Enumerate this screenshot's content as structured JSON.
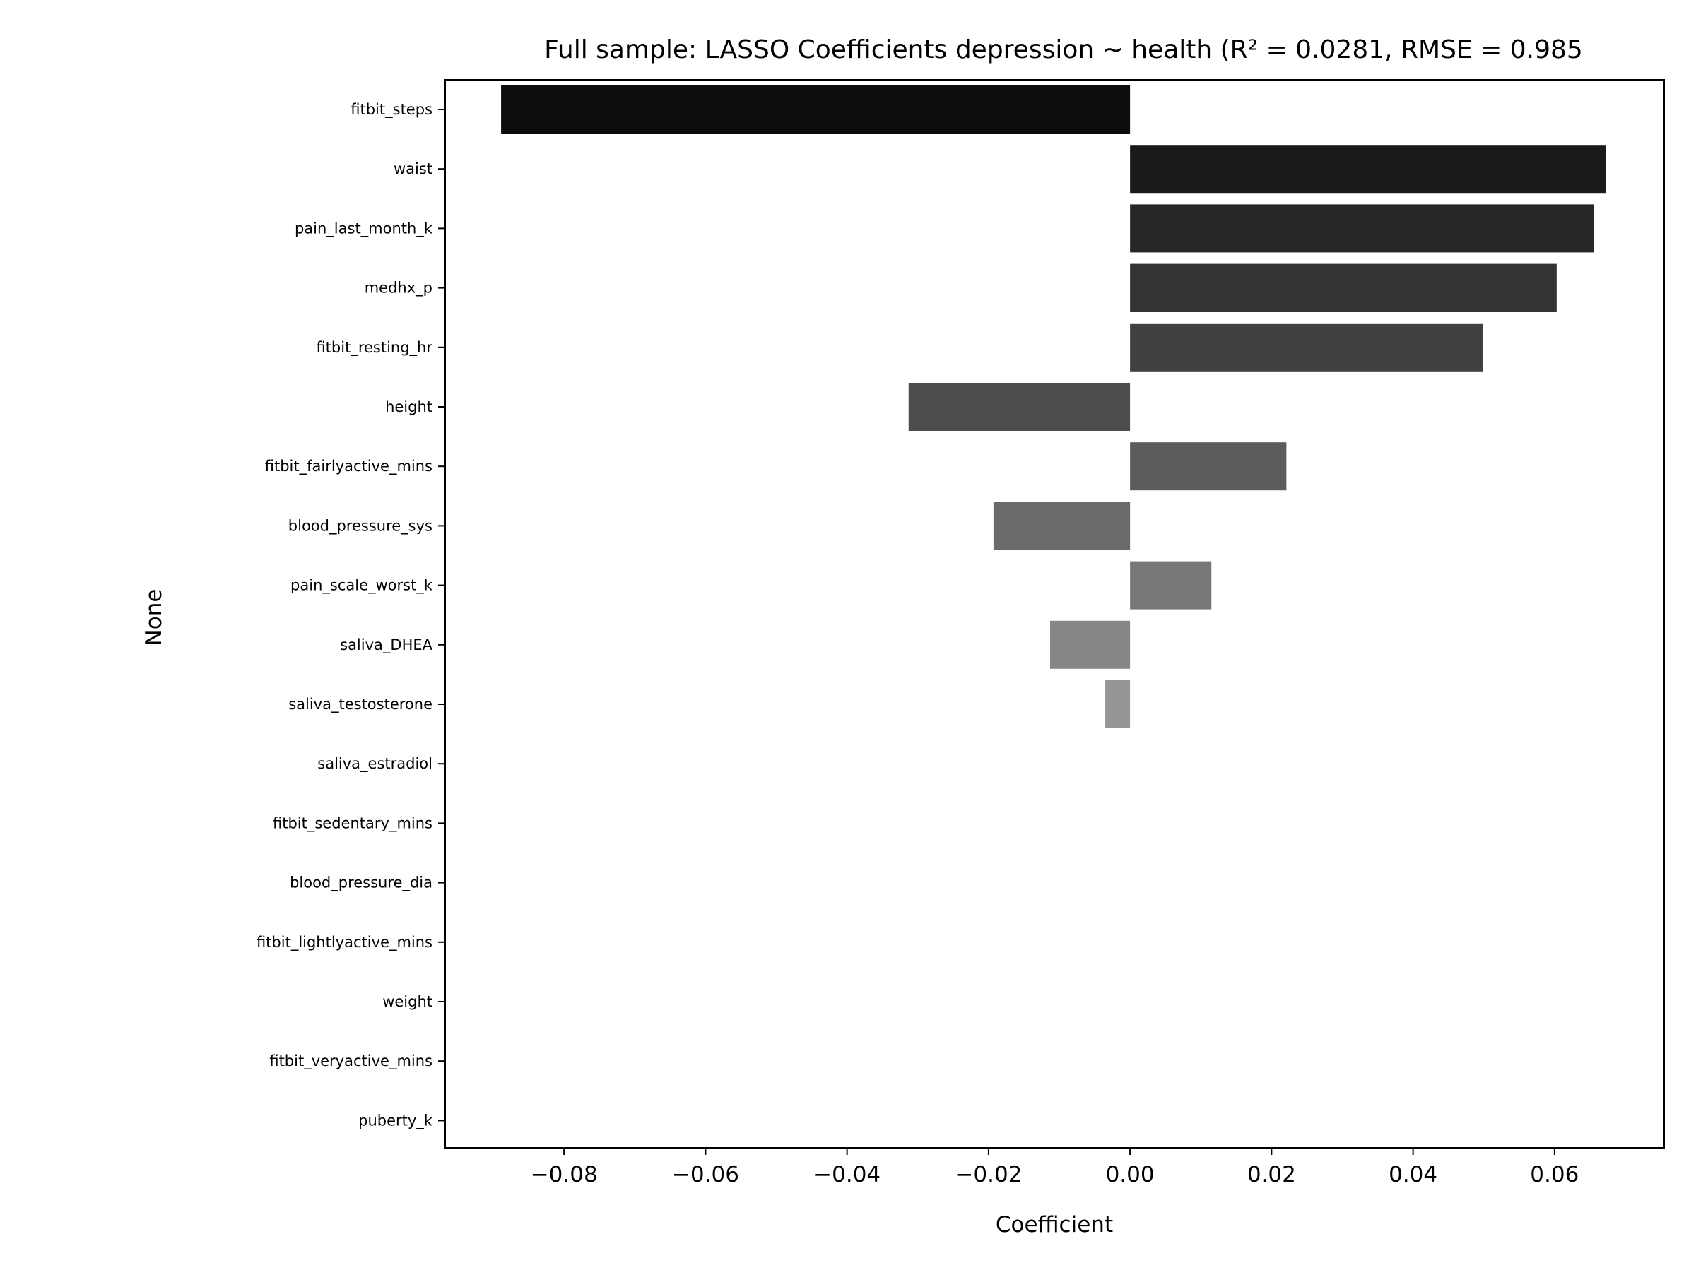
{
  "chart_data": {
    "type": "bar",
    "orientation": "horizontal",
    "title": "Full sample: LASSO Coefficients depression ~ health (R² = 0.0281, RMSE = 0.985",
    "xlabel": "Coefficient",
    "ylabel": "None",
    "xlim": [
      -0.0968,
      0.0755
    ],
    "xticks": [
      -0.08,
      -0.06,
      -0.04,
      -0.02,
      0.0,
      0.02,
      0.04,
      0.06
    ],
    "xtick_labels": [
      "−0.08",
      "−0.06",
      "−0.04",
      "−0.02",
      "0.00",
      "0.02",
      "0.04",
      "0.06"
    ],
    "grid": false,
    "legend": "none",
    "categories": [
      "fitbit_steps",
      "waist",
      "pain_last_month_k",
      "medhx_p",
      "fitbit_resting_hr",
      "height",
      "fitbit_fairlyactive_mins",
      "blood_pressure_sys",
      "pain_scale_worst_k",
      "saliva_DHEA",
      "saliva_testosterone",
      "saliva_estradiol",
      "fitbit_sedentary_mins",
      "blood_pressure_dia",
      "fitbit_lightlyactive_mins",
      "weight",
      "fitbit_veryactive_mins",
      "puberty_k"
    ],
    "values": [
      -0.0889,
      0.0673,
      0.0656,
      0.0603,
      0.0499,
      -0.0313,
      0.0221,
      -0.0193,
      0.0115,
      -0.0113,
      -0.0035,
      0,
      0,
      0,
      0,
      0,
      0,
      0
    ],
    "colors": [
      "#0d0d0d",
      "#1a1a1a",
      "#262626",
      "#333333",
      "#404040",
      "#4d4d4d",
      "#5c5c5c",
      "#6a6a6a",
      "#777777",
      "#868686",
      "#969696",
      "#a5a5a5",
      "#b3b3b3",
      "#c1c1c1",
      "#cfcfcf",
      "#dddddd",
      "#e9e9e9",
      "#f4f4f4"
    ]
  }
}
